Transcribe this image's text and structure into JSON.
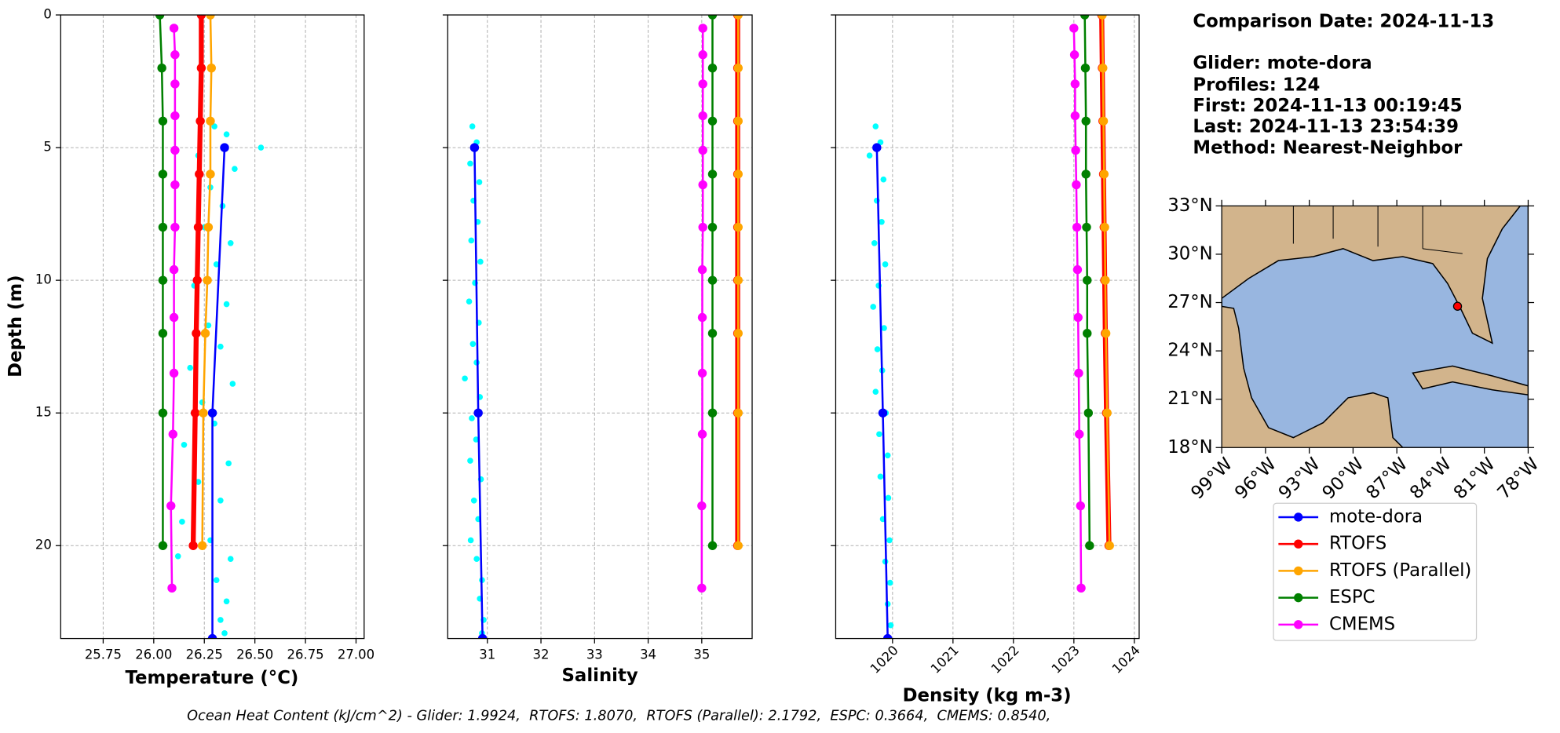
{
  "chart_data": [
    {
      "type": "profile",
      "xlabel": "Temperature (°C)",
      "ylabel": "Depth (m)",
      "xlim": [
        25.54,
        27.04
      ],
      "ylim": [
        23.5,
        0
      ],
      "grid": true,
      "xticks": [
        {
          "value": 25.75,
          "label": "25.75"
        },
        {
          "value": 26.0,
          "label": "26.00"
        },
        {
          "value": 26.25,
          "label": "26.25"
        },
        {
          "value": 26.5,
          "label": "26.50"
        },
        {
          "value": 26.75,
          "label": "26.75"
        },
        {
          "value": 27.0,
          "label": "27.00"
        }
      ],
      "yticks": [
        0,
        5,
        10,
        15,
        20
      ],
      "scatter": {
        "color": "#00ffff",
        "values": [
          26.3,
          26.36,
          26.22,
          26.4,
          26.28,
          26.34,
          26.25,
          26.38,
          26.31,
          26.2,
          26.36,
          26.27,
          26.33,
          26.18,
          26.39,
          26.24,
          26.3,
          26.15,
          26.37,
          26.22,
          26.33,
          26.14,
          26.28,
          26.38,
          26.31,
          26.36,
          26.33,
          26.35,
          26.53,
          26.12
        ],
        "depth": [
          4.2,
          4.5,
          5.3,
          5.8,
          6.5,
          7.2,
          8.0,
          8.6,
          9.4,
          10.2,
          10.9,
          11.7,
          12.5,
          13.3,
          13.9,
          14.6,
          15.4,
          16.2,
          16.9,
          17.6,
          18.3,
          19.1,
          19.8,
          20.5,
          21.3,
          22.1,
          22.8,
          23.3,
          5.0,
          20.4
        ]
      },
      "series": [
        {
          "name": "mote-dora",
          "color": "#0000ff",
          "depth": [
            5,
            15,
            23.5
          ],
          "values": [
            26.35,
            26.29,
            26.29
          ]
        },
        {
          "name": "RTOFS",
          "color": "#ff0000",
          "depth": [
            0,
            2,
            4,
            6,
            8,
            10,
            12,
            15,
            20
          ],
          "values": [
            26.235,
            26.235,
            26.23,
            26.225,
            26.22,
            26.215,
            26.21,
            26.205,
            26.195
          ]
        },
        {
          "name": "RTOFS (Parallel)",
          "color": "#ffa500",
          "depth": [
            0,
            2,
            4,
            6,
            8,
            10,
            12,
            15,
            20
          ],
          "values": [
            26.28,
            26.285,
            26.28,
            26.28,
            26.27,
            26.265,
            26.255,
            26.245,
            26.24
          ]
        },
        {
          "name": "ESPC",
          "color": "#008000",
          "depth": [
            0,
            2,
            4,
            6,
            8,
            10,
            12,
            15,
            20
          ],
          "values": [
            26.03,
            26.04,
            26.045,
            26.045,
            26.045,
            26.045,
            26.045,
            26.045,
            26.045
          ]
        },
        {
          "name": "CMEMS",
          "color": "#ff00ff",
          "depth": [
            0.5,
            1.5,
            2.6,
            3.8,
            5.1,
            6.4,
            8.0,
            9.6,
            11.4,
            13.5,
            15.8,
            18.5,
            21.6
          ],
          "values": [
            26.1,
            26.105,
            26.105,
            26.105,
            26.105,
            26.105,
            26.105,
            26.1,
            26.1,
            26.1,
            26.095,
            26.085,
            26.09
          ]
        }
      ]
    },
    {
      "type": "profile",
      "xlabel": "Salinity",
      "xlim": [
        30.26,
        35.94
      ],
      "ylim": [
        23.5,
        0
      ],
      "grid": true,
      "xticks": [
        31,
        32,
        33,
        34,
        35
      ],
      "yticks": [
        0,
        5,
        10,
        15,
        20
      ],
      "scatter": {
        "color": "#00ffff",
        "values": [
          30.72,
          30.8,
          30.68,
          30.85,
          30.74,
          30.82,
          30.7,
          30.87,
          30.77,
          30.66,
          30.84,
          30.73,
          30.8,
          30.58,
          30.86,
          30.71,
          30.79,
          30.68,
          30.88,
          30.75,
          30.83,
          30.69,
          30.8,
          30.9,
          30.86,
          30.93,
          30.9
        ],
        "depth": [
          4.2,
          4.8,
          5.6,
          6.3,
          7.0,
          7.8,
          8.5,
          9.3,
          10.1,
          10.8,
          11.6,
          12.4,
          13.1,
          13.7,
          14.4,
          15.2,
          16.0,
          16.8,
          17.5,
          18.3,
          19.0,
          19.8,
          20.5,
          21.3,
          22.0,
          22.8,
          23.3
        ]
      },
      "series": [
        {
          "color": "#0000ff",
          "depth": [
            5,
            15,
            23.5
          ],
          "values": [
            30.76,
            30.83,
            30.91
          ]
        },
        {
          "color": "#ff0000",
          "depth": [
            0,
            2,
            4,
            6,
            8,
            10,
            12,
            15,
            20
          ],
          "values": [
            35.67,
            35.67,
            35.67,
            35.67,
            35.67,
            35.67,
            35.67,
            35.67,
            35.67
          ]
        },
        {
          "color": "#ffa500",
          "depth": [
            0,
            2,
            4,
            6,
            8,
            10,
            12,
            15,
            20
          ],
          "values": [
            35.68,
            35.68,
            35.68,
            35.68,
            35.68,
            35.68,
            35.68,
            35.68,
            35.68
          ]
        },
        {
          "color": "#008000",
          "depth": [
            0,
            2,
            4,
            6,
            8,
            10,
            12,
            15,
            20
          ],
          "values": [
            35.2,
            35.2,
            35.2,
            35.2,
            35.2,
            35.2,
            35.2,
            35.2,
            35.2
          ]
        },
        {
          "color": "#ff00ff",
          "depth": [
            0.5,
            1.5,
            2.6,
            3.8,
            5.1,
            6.4,
            8.0,
            9.6,
            11.4,
            13.5,
            15.8,
            18.5,
            21.6
          ],
          "values": [
            35.02,
            35.02,
            35.02,
            35.02,
            35.02,
            35.02,
            35.02,
            35.01,
            35.01,
            35.01,
            35.01,
            35.0,
            35.0
          ]
        }
      ]
    },
    {
      "type": "profile",
      "xlabel": "Density (kg m-3)",
      "xtick_rotation": 45,
      "xlim": [
        1019.06,
        1024.08
      ],
      "ylim": [
        23.5,
        0
      ],
      "grid": true,
      "xticks": [
        1020,
        1021,
        1022,
        1023,
        1024
      ],
      "yticks": [
        0,
        5,
        10,
        15,
        20
      ],
      "scatter": {
        "color": "#00ffff",
        "values": [
          1019.72,
          1019.8,
          1019.62,
          1019.85,
          1019.74,
          1019.82,
          1019.7,
          1019.88,
          1019.77,
          1019.68,
          1019.86,
          1019.75,
          1019.83,
          1019.72,
          1019.89,
          1019.78,
          1019.92,
          1019.8,
          1019.93,
          1019.84,
          1019.95,
          1019.88,
          1019.96,
          1019.92,
          1019.97
        ],
        "depth": [
          4.2,
          4.8,
          5.3,
          6.2,
          7.0,
          7.8,
          8.6,
          9.4,
          10.2,
          11.0,
          11.8,
          12.6,
          13.4,
          14.2,
          15.0,
          15.8,
          16.6,
          17.4,
          18.2,
          19.0,
          19.8,
          20.6,
          21.4,
          22.2,
          23.0
        ]
      },
      "series": [
        {
          "color": "#0000ff",
          "depth": [
            5,
            15,
            23.5
          ],
          "values": [
            1019.74,
            1019.84,
            1019.92
          ]
        },
        {
          "color": "#ff0000",
          "depth": [
            0,
            2,
            4,
            6,
            8,
            10,
            12,
            15,
            20
          ],
          "values": [
            1023.46,
            1023.47,
            1023.48,
            1023.49,
            1023.5,
            1023.51,
            1023.52,
            1023.54,
            1023.58
          ]
        },
        {
          "color": "#ffa500",
          "depth": [
            0,
            2,
            4,
            6,
            8,
            10,
            12,
            15,
            20
          ],
          "values": [
            1023.47,
            1023.48,
            1023.49,
            1023.5,
            1023.51,
            1023.52,
            1023.53,
            1023.55,
            1023.59
          ]
        },
        {
          "color": "#008000",
          "depth": [
            0,
            2,
            4,
            6,
            8,
            10,
            12,
            15,
            20
          ],
          "values": [
            1023.18,
            1023.19,
            1023.2,
            1023.2,
            1023.21,
            1023.22,
            1023.22,
            1023.24,
            1023.26
          ]
        },
        {
          "color": "#ff00ff",
          "depth": [
            0.5,
            1.5,
            2.6,
            3.8,
            5.1,
            6.4,
            8.0,
            9.6,
            11.4,
            13.5,
            15.8,
            18.5,
            21.6
          ],
          "values": [
            1023.0,
            1023.01,
            1023.02,
            1023.02,
            1023.03,
            1023.04,
            1023.05,
            1023.06,
            1023.07,
            1023.08,
            1023.09,
            1023.11,
            1023.12
          ]
        }
      ]
    },
    {
      "type": "map",
      "xlim": [
        -99,
        -78
      ],
      "ylim": [
        18,
        33
      ],
      "xtick_rotation": 45,
      "land_color": "#d2b48c",
      "water_color": "#98b6e0",
      "xticks": [
        {
          "value": -99,
          "label": "99°W"
        },
        {
          "value": -96,
          "label": "96°W"
        },
        {
          "value": -93,
          "label": "93°W"
        },
        {
          "value": -90,
          "label": "90°W"
        },
        {
          "value": -87,
          "label": "87°W"
        },
        {
          "value": -84,
          "label": "84°W"
        },
        {
          "value": -81,
          "label": "81°W"
        },
        {
          "value": -78,
          "label": "78°W"
        }
      ],
      "yticks": [
        {
          "value": 18,
          "label": "18°N"
        },
        {
          "value": 21,
          "label": "21°N"
        },
        {
          "value": 24,
          "label": "24°N"
        },
        {
          "value": 27,
          "label": "27°N"
        },
        {
          "value": 30,
          "label": "30°N"
        },
        {
          "value": 33,
          "label": "33°N"
        }
      ],
      "point": {
        "lon": -82.84,
        "lat": 26.77,
        "color": "#ff0000"
      }
    }
  ],
  "info": [
    "Comparison Date: 2024-11-13",
    "Glider: mote-dora",
    "Profiles: 124",
    "First: 2024-11-13 00:19:45",
    "Last: 2024-11-13 23:54:39",
    "Method: Nearest-Neighbor"
  ],
  "footer": "Ocean Heat Content (kJ/cm^2) - Glider: 1.9924,  RTOFS: 1.8070,  RTOFS (Parallel): 2.1792,  ESPC: 0.3664,  CMEMS: 0.8540,"
}
